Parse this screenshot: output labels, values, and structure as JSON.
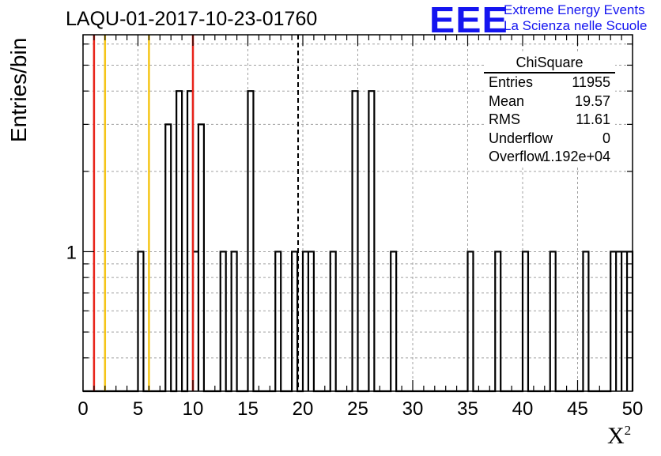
{
  "title": "LAQU-01-2017-10-23-01760",
  "logo": {
    "text": "EEE",
    "line1": "Extreme Energy Events",
    "line2": "La Scienza nelle Scuole",
    "color": "#1515f0"
  },
  "stats": {
    "title": "ChiSquare",
    "rows": [
      {
        "key": "Entries",
        "value": "11955"
      },
      {
        "key": "Mean",
        "value": "19.57"
      },
      {
        "key": "RMS",
        "value": "11.61"
      },
      {
        "key": "Underflow",
        "value": "0"
      },
      {
        "key": "Overflow",
        "value": "1.192e+04"
      }
    ]
  },
  "chart_data": {
    "type": "histogram",
    "title": "LAQU-01-2017-10-23-01760",
    "xlabel": "X",
    "xlabel_sup": "2",
    "ylabel": "Entries/bin",
    "xlim": [
      0,
      50
    ],
    "ylim_log": [
      0.3,
      6.5
    ],
    "yscale": "log",
    "bin_width": 0.5,
    "x_ticks": [
      "0",
      "5",
      "10",
      "15",
      "20",
      "25",
      "30",
      "35",
      "40",
      "45",
      "50"
    ],
    "y_ticks": [
      "1"
    ],
    "grid": true,
    "bins": [
      {
        "x": 5.0,
        "count": 1
      },
      {
        "x": 7.5,
        "count": 3
      },
      {
        "x": 8.5,
        "count": 4
      },
      {
        "x": 9.5,
        "count": 4
      },
      {
        "x": 10.0,
        "count": 1
      },
      {
        "x": 10.5,
        "count": 3
      },
      {
        "x": 12.5,
        "count": 1
      },
      {
        "x": 13.5,
        "count": 1
      },
      {
        "x": 15.0,
        "count": 4
      },
      {
        "x": 17.5,
        "count": 1
      },
      {
        "x": 19.0,
        "count": 1
      },
      {
        "x": 20.0,
        "count": 1
      },
      {
        "x": 20.5,
        "count": 1
      },
      {
        "x": 22.5,
        "count": 1
      },
      {
        "x": 24.5,
        "count": 4
      },
      {
        "x": 26.0,
        "count": 4
      },
      {
        "x": 28.0,
        "count": 1
      },
      {
        "x": 35.0,
        "count": 1
      },
      {
        "x": 37.5,
        "count": 1
      },
      {
        "x": 40.0,
        "count": 1
      },
      {
        "x": 42.5,
        "count": 1
      },
      {
        "x": 45.5,
        "count": 1
      },
      {
        "x": 48.0,
        "count": 1
      },
      {
        "x": 48.5,
        "count": 1
      },
      {
        "x": 49.0,
        "count": 1
      },
      {
        "x": 49.5,
        "count": 1
      }
    ],
    "vertical_lines": [
      {
        "x": 1.0,
        "color": "#e8231a",
        "style": "solid"
      },
      {
        "x": 2.0,
        "color": "#f5c518",
        "style": "solid"
      },
      {
        "x": 6.0,
        "color": "#f5c518",
        "style": "solid"
      },
      {
        "x": 10.0,
        "color": "#e8231a",
        "style": "solid"
      },
      {
        "x": 19.57,
        "color": "#000000",
        "style": "dashed"
      }
    ]
  }
}
